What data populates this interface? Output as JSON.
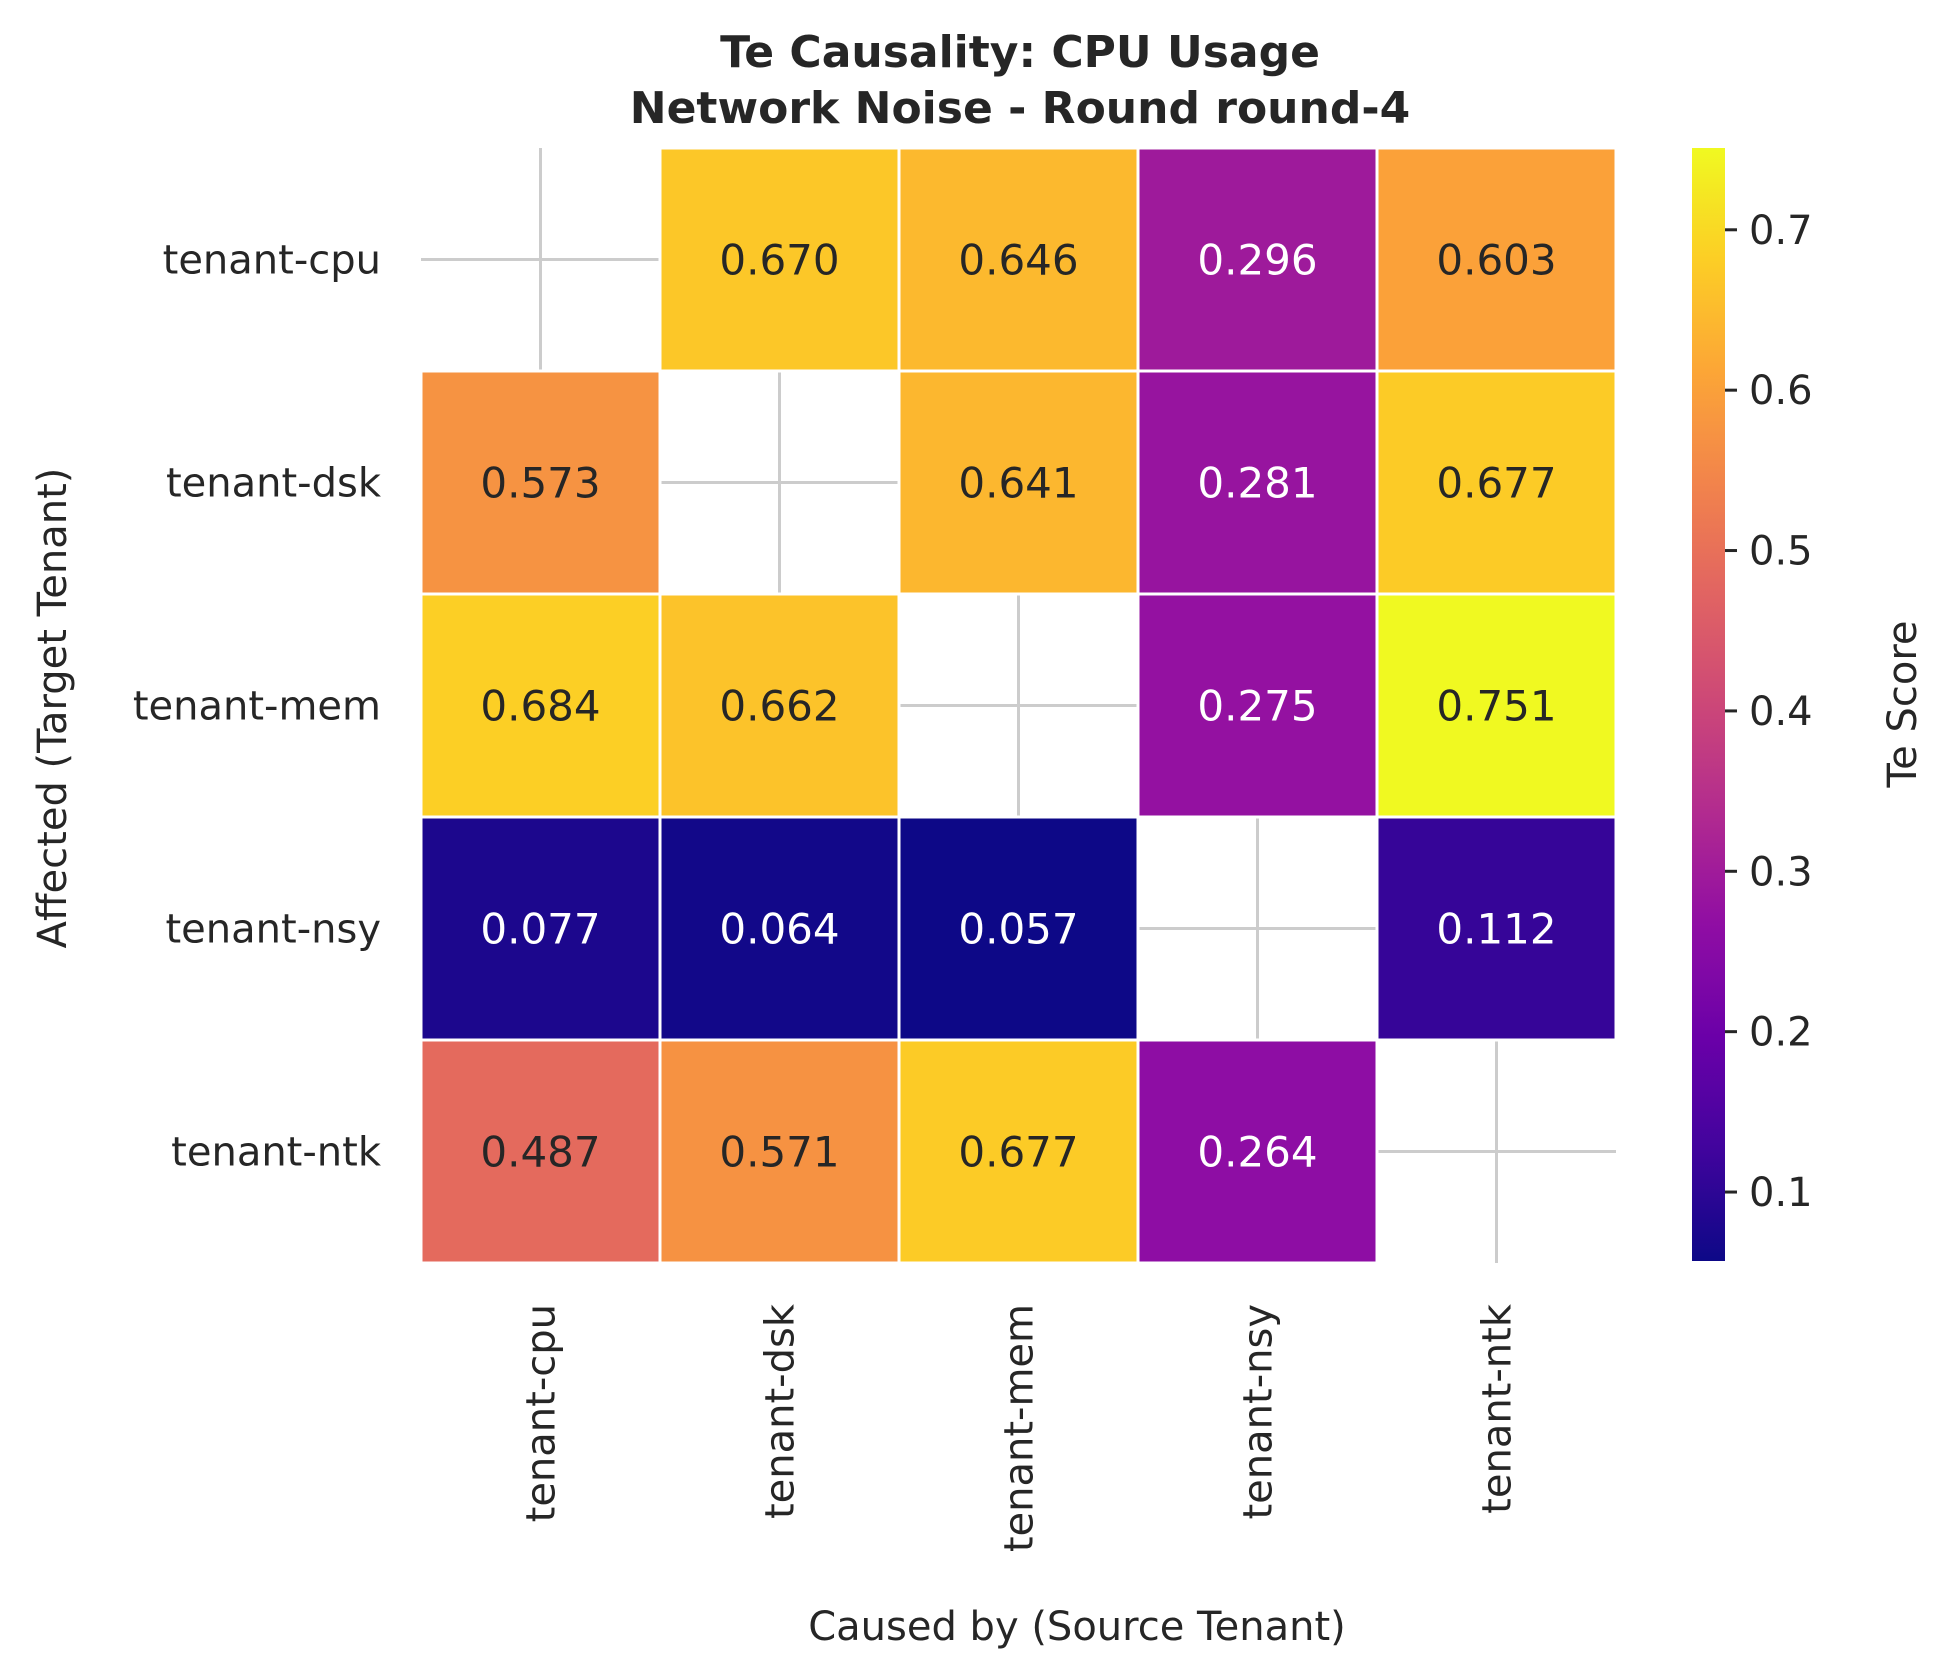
{
  "chart_data": {
    "type": "heatmap",
    "title_lines": [
      "Te Causality: CPU Usage",
      "Network Noise - Round round-4"
    ],
    "xlabel": "Caused by (Source Tenant)",
    "ylabel": "Affected (Target Tenant)",
    "x_categories": [
      "tenant-cpu",
      "tenant-dsk",
      "tenant-mem",
      "tenant-nsy",
      "tenant-ntk"
    ],
    "y_categories": [
      "tenant-cpu",
      "tenant-dsk",
      "tenant-mem",
      "tenant-nsy",
      "tenant-ntk"
    ],
    "values": [
      [
        null,
        0.67,
        0.646,
        0.296,
        0.603
      ],
      [
        0.573,
        null,
        0.641,
        0.281,
        0.677
      ],
      [
        0.684,
        0.662,
        null,
        0.275,
        0.751
      ],
      [
        0.077,
        0.064,
        0.057,
        null,
        0.112
      ],
      [
        0.487,
        0.571,
        0.677,
        0.264,
        null
      ]
    ],
    "value_format": "0.000",
    "colormap": "plasma",
    "colorbar": {
      "label": "Te Score",
      "vmin": 0.057,
      "vmax": 0.751,
      "ticks": [
        0.1,
        0.2,
        0.3,
        0.4,
        0.5,
        0.6,
        0.7
      ],
      "tick_labels": [
        "0.1",
        "0.2",
        "0.3",
        "0.4",
        "0.5",
        "0.6",
        "0.7"
      ]
    },
    "grid": true
  }
}
